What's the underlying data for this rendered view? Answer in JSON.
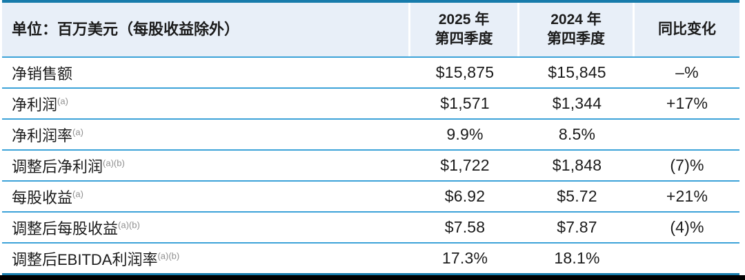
{
  "table": {
    "unit_label": "单位：百万美元（每股收益除外）",
    "columns": {
      "q4_2025": {
        "line1": "2025 年",
        "line2": "第四季度"
      },
      "q4_2024": {
        "line1": "2024 年",
        "line2": "第四季度"
      },
      "yoy": {
        "label": "同比变化"
      }
    },
    "rows": [
      {
        "label": "净销售额",
        "sup": "",
        "q4_2025": "$15,875",
        "q4_2024": "$15,845",
        "yoy": "–%"
      },
      {
        "label": "净利润",
        "sup": "(a)",
        "q4_2025": "$1,571",
        "q4_2024": "$1,344",
        "yoy": "+17%"
      },
      {
        "label": "净利润率",
        "sup": "(a)",
        "q4_2025": "9.9%",
        "q4_2024": "8.5%",
        "yoy": ""
      },
      {
        "label": "调整后净利润",
        "sup": "(a)(b)",
        "q4_2025": "$1,722",
        "q4_2024": "$1,848",
        "yoy": "(7)%"
      },
      {
        "label": "每股收益",
        "sup": "(a)",
        "q4_2025": "$6.92",
        "q4_2024": "$5.72",
        "yoy": "+21%"
      },
      {
        "label": "调整后每股收益",
        "sup": "(a)(b)",
        "q4_2025": "$7.58",
        "q4_2024": "$7.87",
        "yoy": "(4)%"
      },
      {
        "label": "调整后EBITDA利润率",
        "sup": "(a)(b)",
        "q4_2025": "17.3%",
        "q4_2024": "18.1%",
        "yoy": ""
      }
    ],
    "colors": {
      "top_border": "#177bab",
      "header_bg": "#e8eff8",
      "row_divider": "#3ba2d8",
      "bottom_bar": "#000000",
      "text": "#1b1b1b",
      "superscript": "#8f8f8f"
    }
  },
  "chart_data": {
    "type": "table",
    "title": "单位：百万美元（每股收益除外）",
    "columns": [
      "单位：百万美元（每股收益除外）",
      "2025 年第四季度",
      "2024 年第四季度",
      "同比变化"
    ],
    "rows": [
      [
        "净销售额",
        "$15,875",
        "$15,845",
        "–%"
      ],
      [
        "净利润(a)",
        "$1,571",
        "$1,344",
        "+17%"
      ],
      [
        "净利润率(a)",
        "9.9%",
        "8.5%",
        ""
      ],
      [
        "调整后净利润(a)(b)",
        "$1,722",
        "$1,848",
        "(7)%"
      ],
      [
        "每股收益(a)",
        "$6.92",
        "$5.72",
        "+21%"
      ],
      [
        "调整后每股收益(a)(b)",
        "$7.58",
        "$7.87",
        "(4)%"
      ],
      [
        "调整后EBITDA利润率(a)(b)",
        "17.3%",
        "18.1%",
        ""
      ]
    ]
  }
}
